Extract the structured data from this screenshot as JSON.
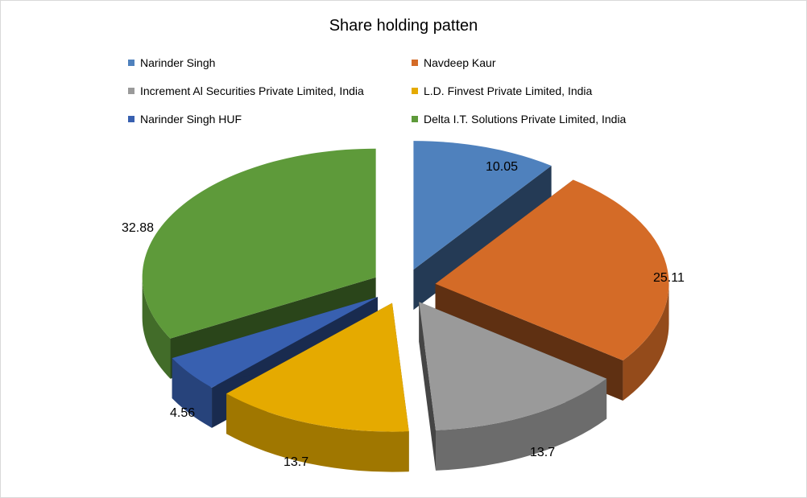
{
  "chart_data": {
    "type": "pie",
    "title": "Share holding patten",
    "legend_position": "top",
    "style": "3d-exploded",
    "slices": [
      {
        "name": "Narinder Singh",
        "value": 10.05,
        "label": "10.05",
        "color": "#4F81BD"
      },
      {
        "name": "Navdeep Kaur",
        "value": 25.11,
        "label": "25.11",
        "color": "#D46B27"
      },
      {
        "name": "Increment Al Securities Private Limited, India",
        "value": 13.7,
        "label": "13.7",
        "color": "#9A9A9A"
      },
      {
        "name": "L.D. Finvest Private Limited, India",
        "value": 13.7,
        "label": "13.7",
        "color": "#E5AA00"
      },
      {
        "name": "Narinder Singh HUF",
        "value": 4.56,
        "label": "4.56",
        "color": "#3860B0"
      },
      {
        "name": "Delta I.T. Solutions Private Limited, India",
        "value": 32.88,
        "label": "32.88",
        "color": "#5E9A3A"
      }
    ]
  }
}
